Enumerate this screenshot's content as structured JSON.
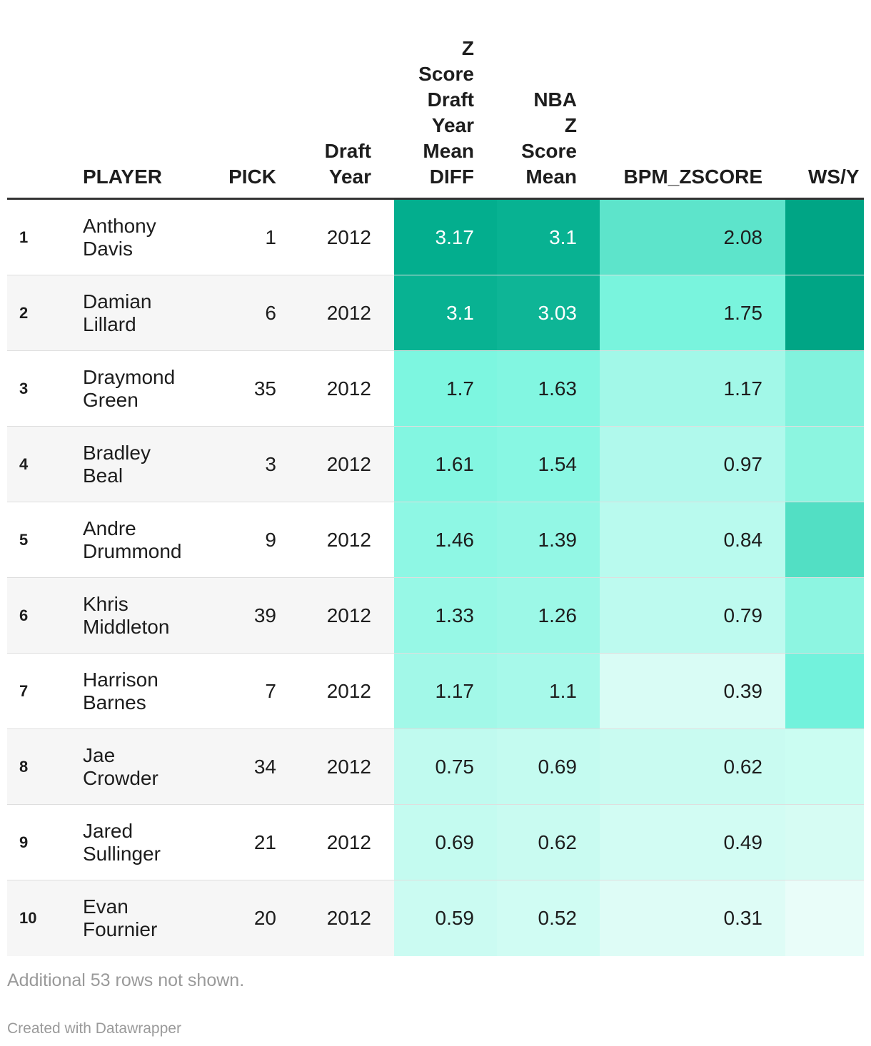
{
  "chart_data": {
    "type": "table",
    "columns": [
      {
        "key": "rank",
        "label": []
      },
      {
        "key": "player",
        "label": [
          "PLAYER"
        ]
      },
      {
        "key": "pick",
        "label": [
          "PICK"
        ]
      },
      {
        "key": "draft_year",
        "label": [
          "Draft",
          "Year"
        ]
      },
      {
        "key": "z_diff",
        "label": [
          "Z",
          "Score",
          "Draft",
          "Year",
          "Mean",
          "DIFF"
        ]
      },
      {
        "key": "nba_z",
        "label": [
          "NBA",
          "Z",
          "Score",
          "Mean"
        ]
      },
      {
        "key": "bpm",
        "label": [
          "BPM_ZSCORE"
        ]
      },
      {
        "key": "wsy",
        "label": [
          "WS/Y"
        ]
      }
    ],
    "rows": [
      {
        "rank": "1",
        "player": [
          "Anthony",
          "Davis"
        ],
        "pick": "1",
        "draft_year": "2012",
        "z_diff": "3.17",
        "nba_z": "3.1",
        "bpm": "2.08",
        "wsy_color": "#00a585"
      },
      {
        "rank": "2",
        "player": [
          "Damian",
          "Lillard"
        ],
        "pick": "6",
        "draft_year": "2012",
        "z_diff": "3.1",
        "nba_z": "3.03",
        "bpm": "1.75",
        "wsy_color": "#00a585"
      },
      {
        "rank": "3",
        "player": [
          "Draymond",
          "Green"
        ],
        "pick": "35",
        "draft_year": "2012",
        "z_diff": "1.7",
        "nba_z": "1.63",
        "bpm": "1.17",
        "wsy_color": "#82f2dd"
      },
      {
        "rank": "4",
        "player": [
          "Bradley",
          "Beal"
        ],
        "pick": "3",
        "draft_year": "2012",
        "z_diff": "1.61",
        "nba_z": "1.54",
        "bpm": "0.97",
        "wsy_color": "#8cf5e0"
      },
      {
        "rank": "5",
        "player": [
          "Andre",
          "Drummond"
        ],
        "pick": "9",
        "draft_year": "2012",
        "z_diff": "1.46",
        "nba_z": "1.39",
        "bpm": "0.84",
        "wsy_color": "#52dfc4"
      },
      {
        "rank": "6",
        "player": [
          "Khris",
          "Middleton"
        ],
        "pick": "39",
        "draft_year": "2012",
        "z_diff": "1.33",
        "nba_z": "1.26",
        "bpm": "0.79",
        "wsy_color": "#8df5e1"
      },
      {
        "rank": "7",
        "player": [
          "Harrison",
          "Barnes"
        ],
        "pick": "7",
        "draft_year": "2012",
        "z_diff": "1.17",
        "nba_z": "1.1",
        "bpm": "0.39",
        "wsy_color": "#72f2dc"
      },
      {
        "rank": "8",
        "player": [
          "Jae",
          "Crowder"
        ],
        "pick": "34",
        "draft_year": "2012",
        "z_diff": "0.75",
        "nba_z": "0.69",
        "bpm": "0.62",
        "wsy_color": "#cbfdf2"
      },
      {
        "rank": "9",
        "player": [
          "Jared",
          "Sullinger"
        ],
        "pick": "21",
        "draft_year": "2012",
        "z_diff": "0.69",
        "nba_z": "0.62",
        "bpm": "0.49",
        "wsy_color": "#d6fcf3"
      },
      {
        "rank": "10",
        "player": [
          "Evan",
          "Fournier"
        ],
        "pick": "20",
        "draft_year": "2012",
        "z_diff": "0.59",
        "nba_z": "0.52",
        "bpm": "0.31",
        "wsy_color": "#e9fdf9"
      }
    ],
    "color_scale": {
      "low": "#e6fdf8",
      "mid": "#7df6e0",
      "high": "#00ad8c"
    }
  },
  "footnote": "Additional 53 rows not shown.",
  "credit": "Created with Datawrapper"
}
